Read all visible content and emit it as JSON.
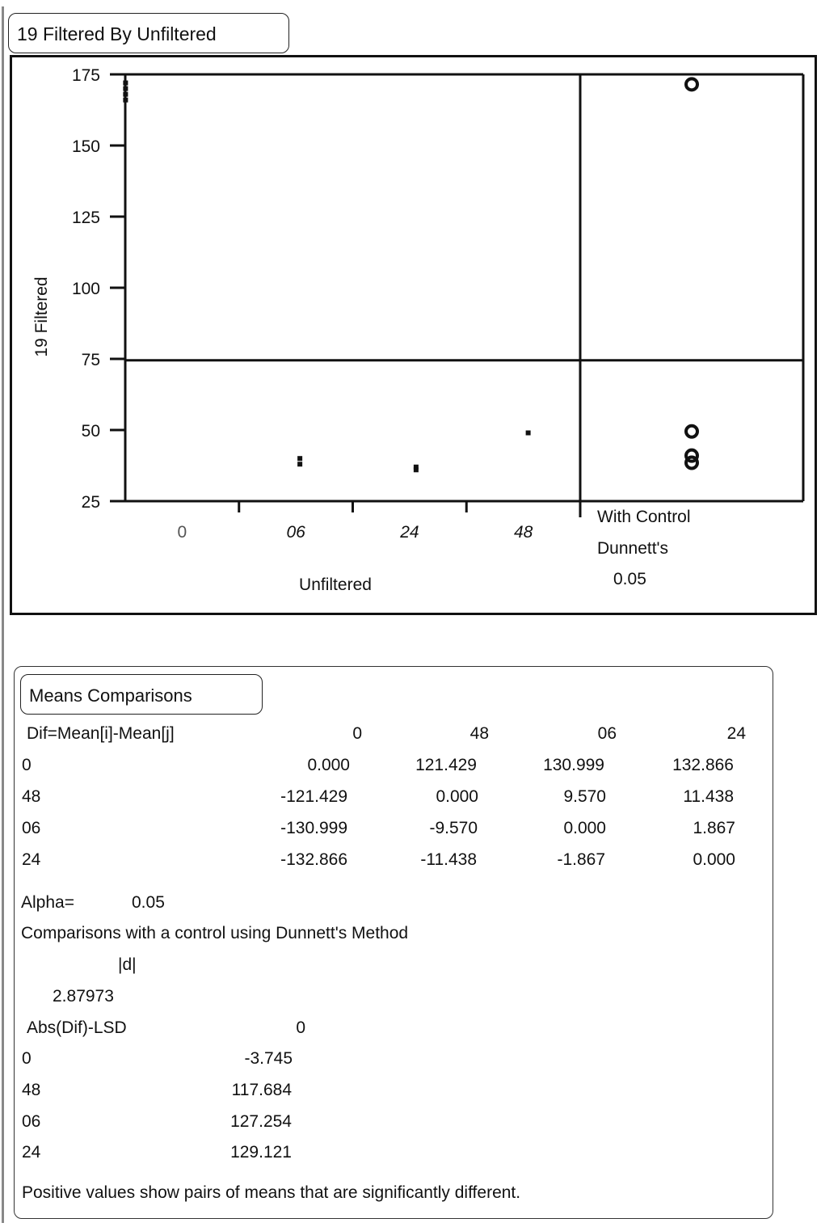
{
  "title": "19 Filtered By Unfiltered",
  "chart_data": {
    "type": "scatter",
    "title": "",
    "xlabel": "Unfiltered",
    "ylabel": "19 Filtered",
    "categories": [
      "0",
      "06",
      "24",
      "48"
    ],
    "ylim": [
      25,
      175
    ],
    "yticks": [
      "175",
      "150",
      "125",
      "100",
      "75",
      "50",
      "25"
    ],
    "grand_mean": 74.5,
    "points": [
      {
        "category": "0",
        "values": [
          172,
          170,
          168,
          166
        ]
      },
      {
        "category": "06",
        "values": [
          40,
          38
        ]
      },
      {
        "category": "24",
        "values": [
          37,
          36
        ]
      },
      {
        "category": "48",
        "values": [
          49
        ]
      }
    ],
    "comparison_circles": [
      {
        "center": 171.5,
        "radius": 1.5
      },
      {
        "center": 49.5,
        "radius": 1.5
      },
      {
        "center": 41,
        "radius": 1.5
      },
      {
        "center": 38.5,
        "radius": 1.5
      }
    ],
    "comparison_label": [
      "With Control",
      "Dunnett's",
      "0.05"
    ]
  },
  "means": {
    "title": "Means Comparisons",
    "diff_header": "Dif=Mean[i]-Mean[j]",
    "columns": [
      "0",
      "48",
      "06",
      "24"
    ],
    "rows": [
      {
        "label": "0",
        "values": [
          "0.000",
          "121.429",
          "130.999",
          "132.866"
        ]
      },
      {
        "label": "48",
        "values": [
          "-121.429",
          "0.000",
          "9.570",
          "11.438"
        ]
      },
      {
        "label": "06",
        "values": [
          "-130.999",
          "-9.570",
          "0.000",
          "1.867"
        ]
      },
      {
        "label": "24",
        "values": [
          "-132.866",
          "-11.438",
          "-1.867",
          "0.000"
        ]
      }
    ],
    "alpha_label": "Alpha=",
    "alpha_value": "0.05",
    "dunnett_text": "Comparisons with a control using Dunnett's Method",
    "d_label": "|d|",
    "d_value": "2.87973",
    "lsd_header": "Abs(Dif)-LSD",
    "lsd_column": "0",
    "lsd_rows": [
      {
        "label": "0",
        "value": "-3.745"
      },
      {
        "label": "48",
        "value": "117.684"
      },
      {
        "label": "06",
        "value": "127.254"
      },
      {
        "label": "24",
        "value": "129.121"
      }
    ],
    "footnote": "Positive values show pairs of means that are significantly different."
  }
}
